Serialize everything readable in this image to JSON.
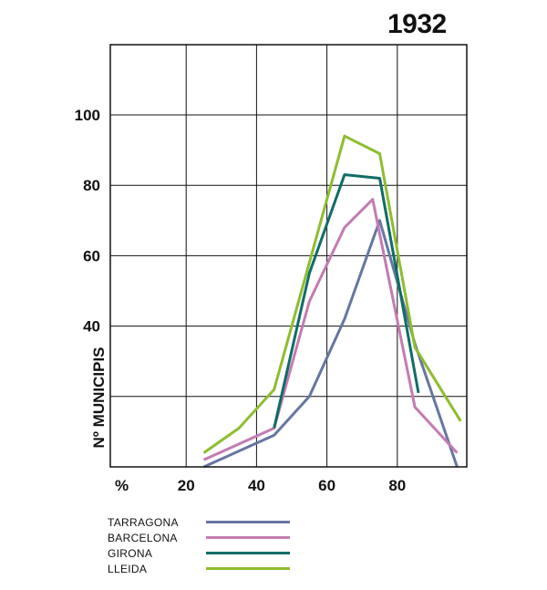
{
  "chart_data": {
    "type": "line",
    "title": "1932",
    "xlabel": "%",
    "ylabel": "Nº MUNICIPIS",
    "xlim": [
      0,
      100
    ],
    "ylim": [
      0,
      120
    ],
    "x_ticks": [
      20,
      40,
      60,
      80
    ],
    "y_ticks": [
      40,
      60,
      80,
      100
    ],
    "grid": true,
    "legend_position": "below",
    "series": [
      {
        "name": "TARRAGONA",
        "color": "#6676a2",
        "points": [
          [
            25,
            0
          ],
          [
            45,
            9
          ],
          [
            55,
            20
          ],
          [
            65,
            42
          ],
          [
            75,
            70
          ],
          [
            85,
            35
          ],
          [
            97,
            0
          ]
        ]
      },
      {
        "name": "BARCELONA",
        "color": "#c47bb2",
        "points": [
          [
            25,
            2
          ],
          [
            45,
            11
          ],
          [
            55,
            47
          ],
          [
            65,
            68
          ],
          [
            73,
            76
          ],
          [
            85,
            17
          ],
          [
            97,
            4
          ]
        ]
      },
      {
        "name": "GIRONA",
        "color": "#0f6d66",
        "points": [
          [
            45,
            11
          ],
          [
            55,
            55
          ],
          [
            65,
            83
          ],
          [
            75,
            82
          ],
          [
            86,
            21
          ]
        ]
      },
      {
        "name": "LLEIDA",
        "color": "#8ebd30",
        "points": [
          [
            25,
            4
          ],
          [
            35,
            11
          ],
          [
            45,
            22
          ],
          [
            55,
            58
          ],
          [
            65,
            94
          ],
          [
            75,
            89
          ],
          [
            85,
            34
          ],
          [
            98,
            13
          ]
        ]
      }
    ]
  }
}
